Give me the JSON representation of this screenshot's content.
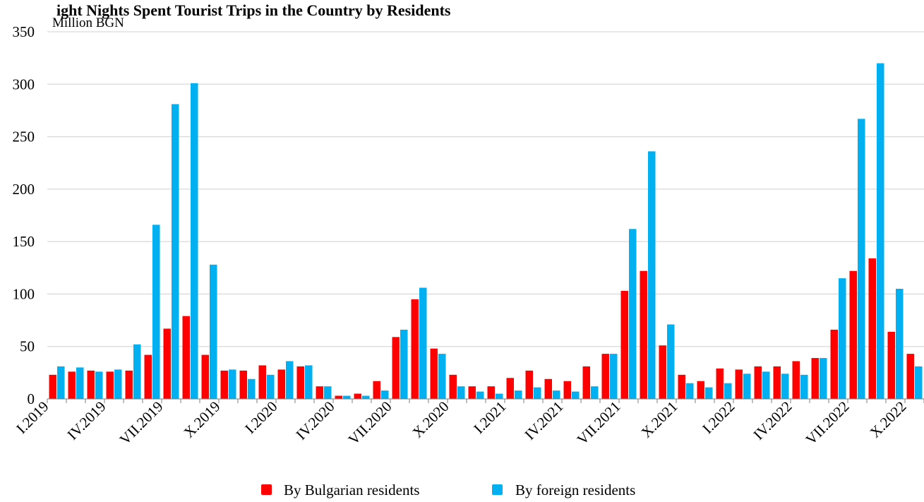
{
  "chart_data": {
    "type": "bar",
    "title": "ight Nights Spent Tourist Trips in the Country by Residents",
    "ylabel": "Million BGN",
    "ylim": [
      0,
      350
    ],
    "yticks": [
      0,
      50,
      100,
      150,
      200,
      250,
      300,
      350
    ],
    "grid": true,
    "legend_position": "bottom",
    "categories": [
      "I.2019",
      "II.2019",
      "III.2019",
      "IV.2019",
      "V.2019",
      "VI.2019",
      "VII.2019",
      "VIII.2019",
      "IX.2019",
      "X.2019",
      "XI.2019",
      "XII.2019",
      "I.2020",
      "II.2020",
      "III.2020",
      "IV.2020",
      "V.2020",
      "VI.2020",
      "VII.2020",
      "VIII.2020",
      "IX.2020",
      "X.2020",
      "XI.2020",
      "XII.2020",
      "I.2021",
      "II.2021",
      "III.2021",
      "IV.2021",
      "V.2021",
      "VI.2021",
      "VII.2021",
      "VIII.2021",
      "IX.2021",
      "X.2021",
      "XI.2021",
      "XII.2021",
      "I.2022",
      "II.2022",
      "III.2022",
      "IV.2022",
      "V.2022",
      "VI.2022",
      "VII.2022",
      "VIII.2022",
      "IX.2022",
      "X.2022"
    ],
    "xtick_labels": [
      "I.2019",
      "IV.2019",
      "VII.2019",
      "X.2019",
      "I.2020",
      "IV.2020",
      "VII.2020",
      "X.2020",
      "I.2021",
      "IV.2021",
      "VII.2021",
      "X.2021",
      "I.2022",
      "IV.2022",
      "VII.2022",
      "X.2022"
    ],
    "series": [
      {
        "name": "By Bulgarian residents",
        "color": "#ff0000",
        "values": [
          23,
          26,
          27,
          26,
          27,
          42,
          67,
          79,
          42,
          27,
          27,
          32,
          28,
          31,
          12,
          3,
          5,
          17,
          59,
          95,
          48,
          23,
          12,
          12,
          20,
          27,
          19,
          17,
          31,
          43,
          103,
          122,
          51,
          23,
          17,
          29,
          28,
          31,
          31,
          36,
          39,
          66,
          122,
          134,
          64,
          43
        ]
      },
      {
        "name": "By foreign residents",
        "color": "#00b0f0",
        "values": [
          31,
          30,
          26,
          28,
          52,
          166,
          281,
          301,
          128,
          28,
          19,
          23,
          36,
          32,
          12,
          3,
          3,
          8,
          66,
          106,
          43,
          12,
          7,
          5,
          8,
          11,
          8,
          7,
          12,
          43,
          162,
          236,
          71,
          15,
          11,
          15,
          24,
          26,
          24,
          23,
          39,
          115,
          267,
          320,
          105,
          31
        ]
      }
    ]
  }
}
